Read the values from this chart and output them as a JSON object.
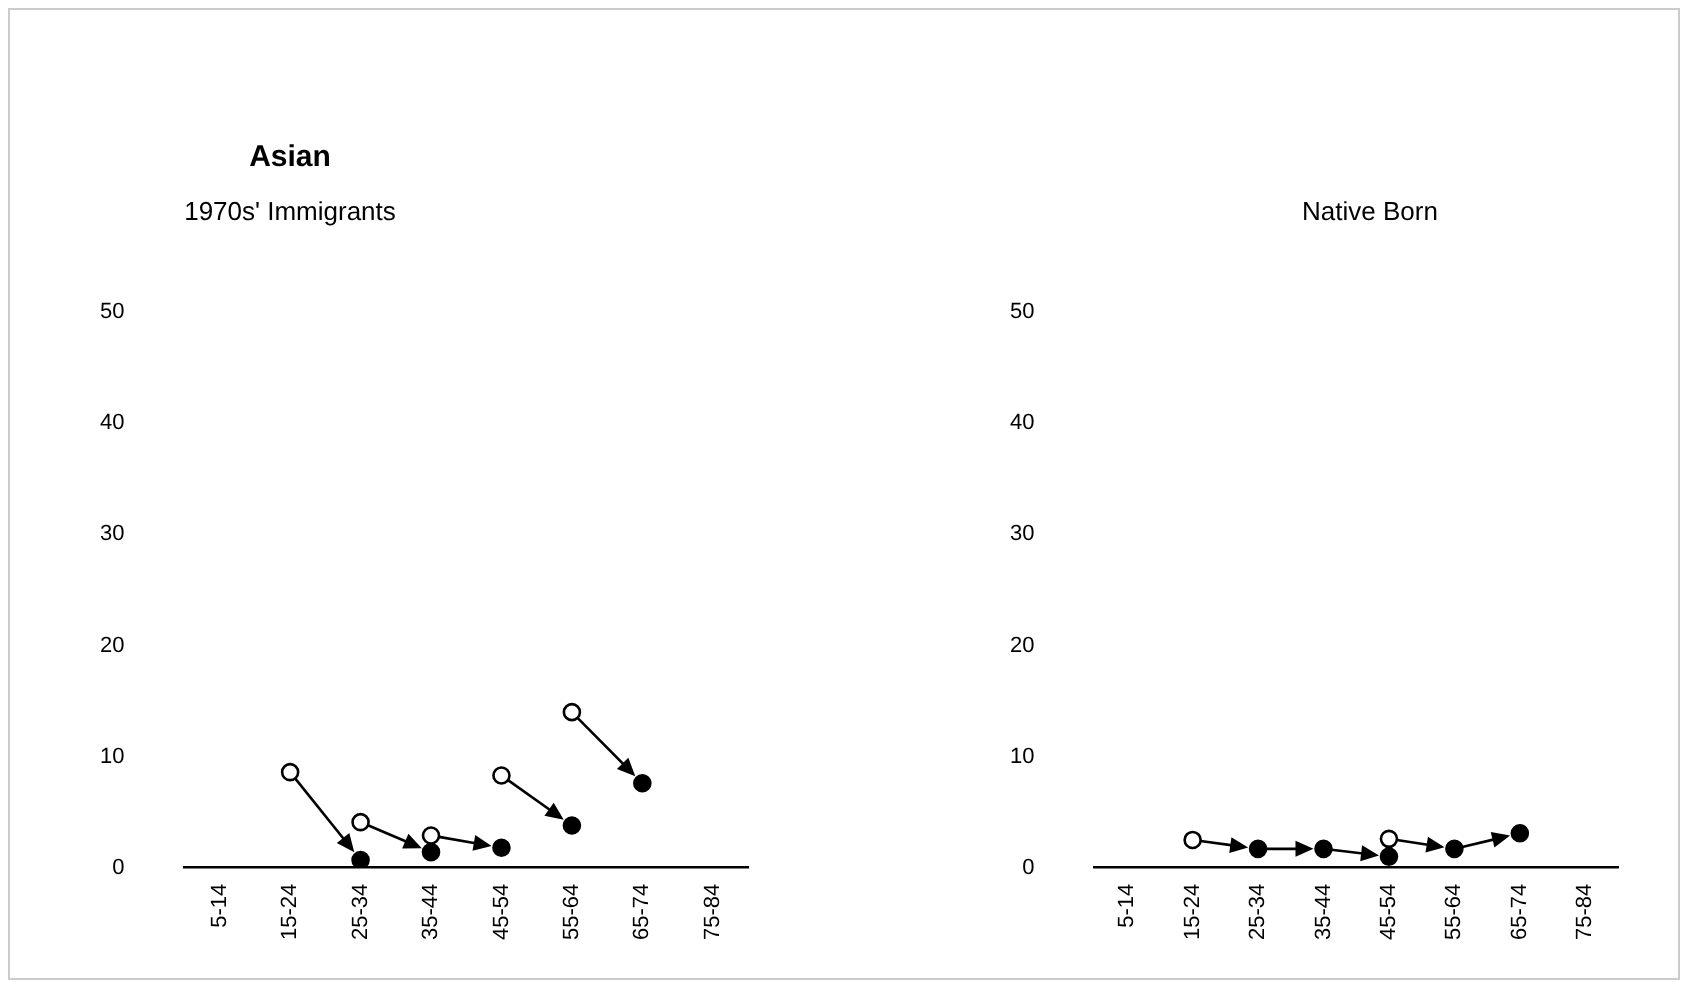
{
  "chart_data": [
    {
      "type": "scatter",
      "title": "Asian",
      "subtitle": "1970s' Immigrants",
      "categories": [
        "5-14",
        "15-24",
        "25-34",
        "35-44",
        "45-54",
        "55-64",
        "65-74",
        "75-84"
      ],
      "ylim": [
        0,
        50
      ],
      "yticks": [
        0,
        10,
        20,
        30,
        40,
        50
      ],
      "grid": false,
      "marker": "circle",
      "series": [
        {
          "color": "#ffffff",
          "values": [
            null,
            8.6,
            4.1,
            2.9,
            8.3,
            14.0,
            null,
            null
          ]
        },
        {
          "color": "#000000",
          "values": [
            null,
            null,
            0.7,
            1.4,
            1.8,
            3.8,
            7.6,
            null
          ]
        }
      ]
    },
    {
      "type": "scatter",
      "subtitle": "Native Born",
      "categories": [
        "5-14",
        "15-24",
        "25-34",
        "35-44",
        "45-54",
        "55-64",
        "65-74",
        "75-84"
      ],
      "ylim": [
        0,
        50
      ],
      "yticks": [
        0,
        10,
        20,
        30,
        40,
        50
      ],
      "grid": false,
      "marker": "circle",
      "series": [
        {
          "color": "#ffffff",
          "values": [
            null,
            2.5,
            null,
            null,
            2.6,
            null,
            null,
            null
          ]
        },
        {
          "color": "#000000",
          "values": [
            null,
            null,
            1.7,
            1.7,
            1.0,
            1.7,
            3.1,
            null
          ]
        }
      ]
    }
  ]
}
